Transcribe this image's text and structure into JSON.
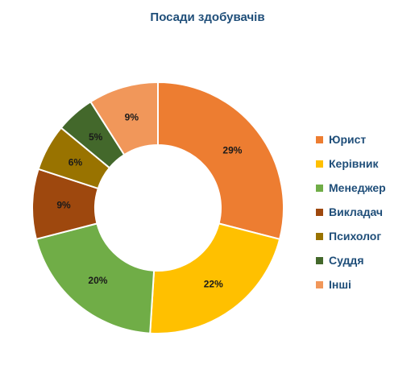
{
  "chart_data": {
    "type": "pie",
    "subtype": "donut",
    "title": "Посади здобувачів",
    "categories": [
      "Юрист",
      "Керівник",
      "Менеджер",
      "Викладач",
      "Психолог",
      "Суддя",
      "Інші"
    ],
    "values": [
      29,
      22,
      20,
      9,
      6,
      5,
      9
    ],
    "value_labels": [
      "29%",
      "22%",
      "20%",
      "9%",
      "6%",
      "5%",
      "9%"
    ],
    "colors": [
      "#ed7d31",
      "#ffc000",
      "#70ad47",
      "#9e480e",
      "#997300",
      "#43682b",
      "#f1975a"
    ],
    "legend_position": "right"
  }
}
